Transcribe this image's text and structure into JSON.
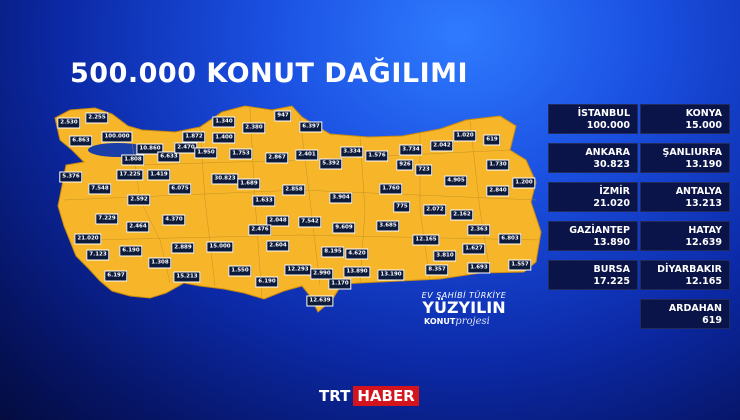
{
  "title": "500.000 KONUT DAĞILIMI",
  "colors": {
    "map_fill": "#f7b52a",
    "card_bg": "#0a1448",
    "background": "#1a4fe0",
    "logo_red": "#d4141c"
  },
  "cards": [
    {
      "city": "İSTANBUL",
      "value": "100.000"
    },
    {
      "city": "KONYA",
      "value": "15.000"
    },
    {
      "city": "ANKARA",
      "value": "30.823"
    },
    {
      "city": "ŞANLIURFA",
      "value": "13.190"
    },
    {
      "city": "İZMİR",
      "value": "21.020"
    },
    {
      "city": "ANTALYA",
      "value": "13.213"
    },
    {
      "city": "GAZİANTEP",
      "value": "13.890"
    },
    {
      "city": "HATAY",
      "value": "12.639"
    },
    {
      "city": "BURSA",
      "value": "17.225"
    },
    {
      "city": "DİYARBAKIR",
      "value": "12.165"
    },
    {
      "city": "ARDAHAN",
      "value": "619"
    }
  ],
  "map_labels": [
    "2.530",
    "2.255",
    "6.863",
    "100.000",
    "1.808",
    "10.860",
    "6.633",
    "2.470",
    "1.872",
    "1.340",
    "1.400",
    "1.950",
    "2.380",
    "947",
    "1.753",
    "2.867",
    "5.376",
    "17.225",
    "1.419",
    "7.548",
    "6.075",
    "30.823",
    "1.689",
    "2.592",
    "1.633",
    "6.397",
    "2.401",
    "5.392",
    "3.334",
    "1.576",
    "3.734",
    "926",
    "723",
    "2.042",
    "1.020",
    "619",
    "1.730",
    "4.905",
    "1.200",
    "2.840",
    "1.760",
    "2.858",
    "3.904",
    "775",
    "2.072",
    "2.162",
    "2.363",
    "6.803",
    "9.609",
    "3.685",
    "12.165",
    "1.627",
    "3.810",
    "8.357",
    "1.693",
    "1.557",
    "2.048",
    "7.542",
    "2.604",
    "8.195",
    "4.620",
    "12.293",
    "2.990",
    "13.890",
    "13.190",
    "1.170",
    "12.639",
    "7.229",
    "2.464",
    "4.370",
    "21.020",
    "2.889",
    "15.000",
    "6.190",
    "7.123",
    "1.308",
    "1.550",
    "6.197",
    "15.213",
    "6.190",
    "2.476"
  ],
  "slogan": {
    "line1": "EV SAHİBİ TÜRKİYE",
    "line2": "YÜZYILIN",
    "line3": "KONUT",
    "line4": "projesi"
  },
  "logo": {
    "part1": "TRT",
    "part2": "HABER"
  }
}
